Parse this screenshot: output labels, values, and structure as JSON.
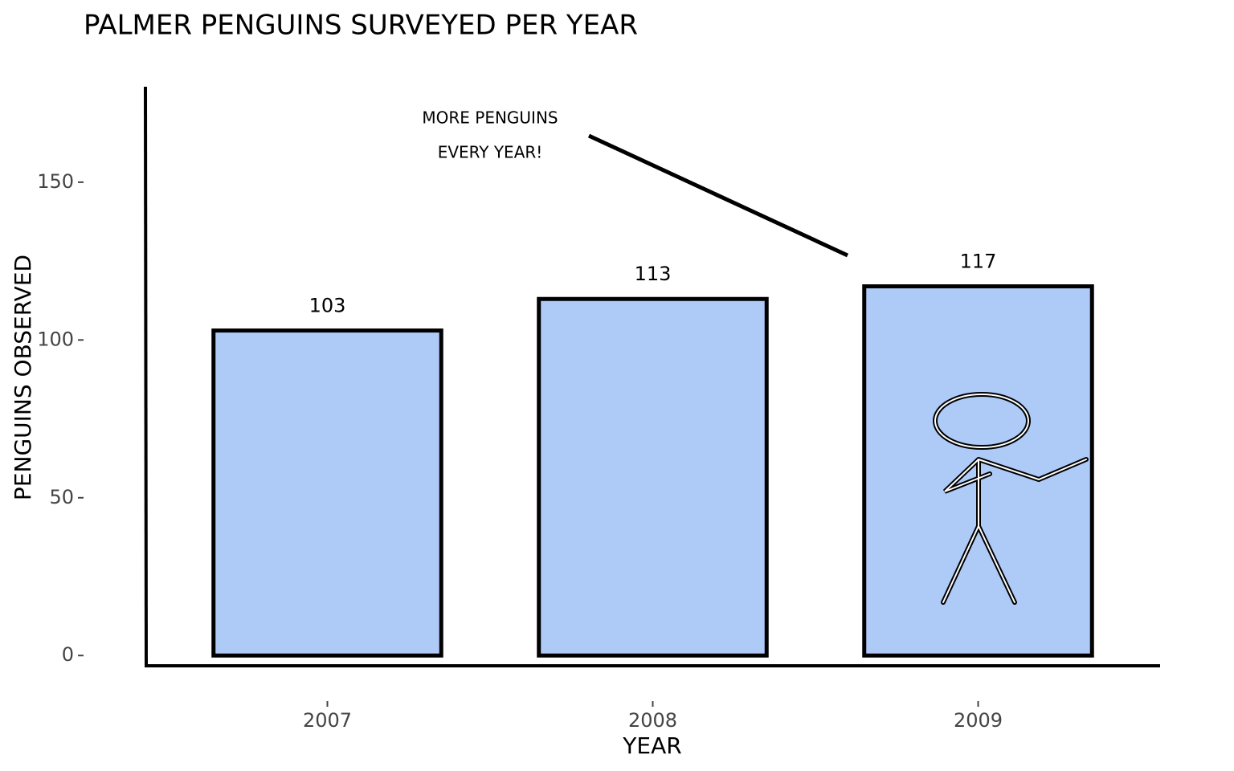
{
  "chart_data": {
    "type": "bar",
    "title": "PALMER PENGUINS SURVEYED PER YEAR",
    "x_label": "YEAR",
    "y_label": "PENGUINS OBSERVED",
    "annotation": [
      "MORE PENGUINS",
      "EVERY YEAR!"
    ],
    "categories": [
      "2007",
      "2008",
      "2009"
    ],
    "values": [
      103,
      113,
      117
    ],
    "color": "#aecbf8",
    "ylim": [
      -3,
      180
    ],
    "yticks": [
      0,
      50,
      100,
      150
    ],
    "grid": false
  }
}
